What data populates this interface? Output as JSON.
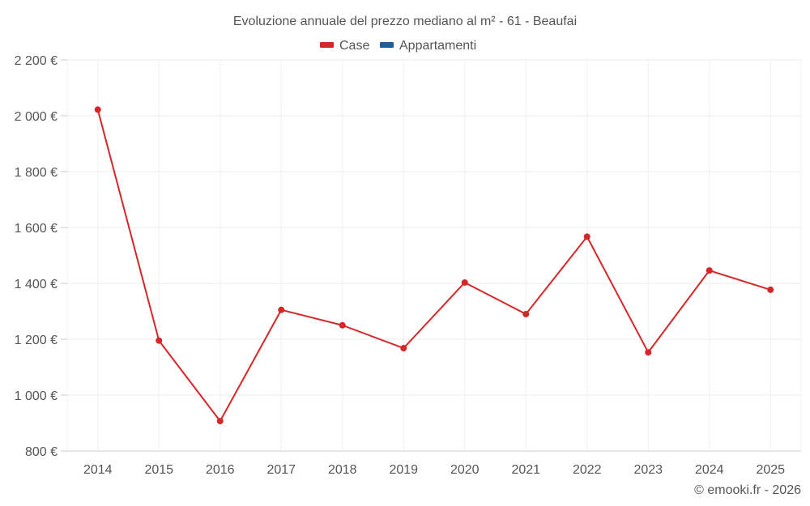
{
  "chart_data": {
    "type": "line",
    "title": "Evoluzione annuale del prezzo mediano al m² - 61 - Beaufai",
    "x": [
      "2014",
      "2015",
      "2016",
      "2017",
      "2018",
      "2019",
      "2020",
      "2021",
      "2022",
      "2023",
      "2024",
      "2025"
    ],
    "series": [
      {
        "name": "Case",
        "color": "#d62728",
        "values": [
          2022,
          1195,
          907,
          1305,
          1250,
          1168,
          1403,
          1290,
          1567,
          1153,
          1446,
          1377
        ]
      }
    ],
    "legend": [
      {
        "name": "Case",
        "color": "#d62728"
      },
      {
        "name": "Appartamenti",
        "color": "#1f5f99"
      }
    ],
    "yticks": [
      "800 €",
      "1 000 €",
      "1 200 €",
      "1 400 €",
      "1 600 €",
      "1 800 €",
      "2 000 €",
      "2 200 €"
    ],
    "ylim": [
      800,
      2200
    ],
    "grid": true,
    "legend_position": "top-center"
  },
  "credit": "© emooki.fr - 2026"
}
